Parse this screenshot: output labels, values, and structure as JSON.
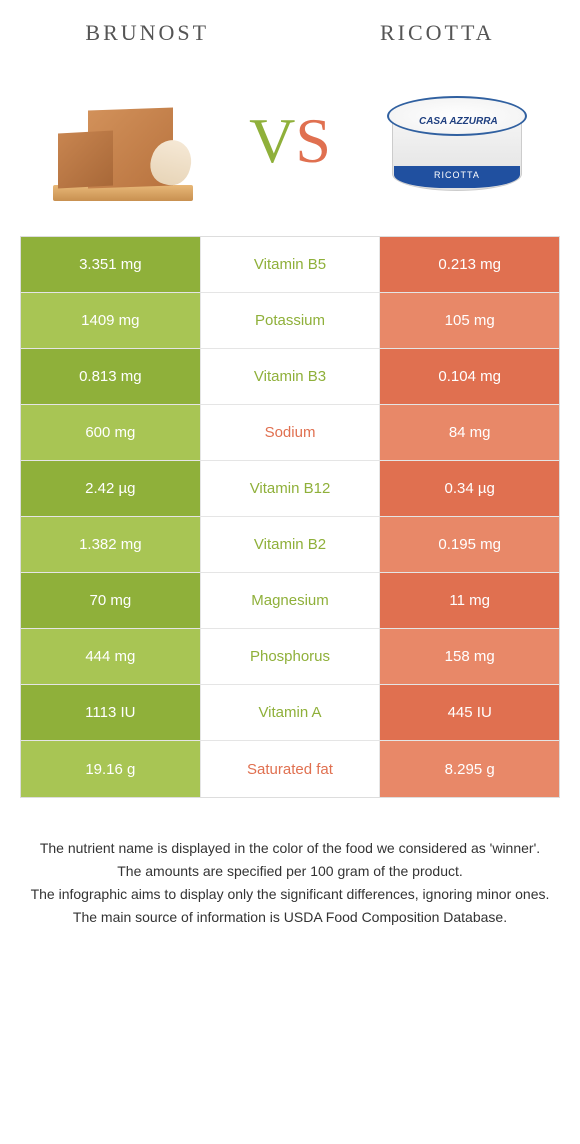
{
  "header": {
    "left": "Brunost",
    "right": "Ricotta"
  },
  "vs": {
    "v": "V",
    "s": "S",
    "v_color": "#8fb03a",
    "s_color": "#e07050"
  },
  "colors": {
    "brunost": "#8fb03a",
    "ricotta": "#e07050",
    "brunost_light": "#a8c554",
    "ricotta_light": "#e88868"
  },
  "ricotta_label": "RICOTTA",
  "ricotta_brand": "CASA AZZURRA",
  "rows": [
    {
      "left": "3.351 mg",
      "mid": "Vitamin B5",
      "right": "0.213 mg",
      "winner": "brunost"
    },
    {
      "left": "1409 mg",
      "mid": "Potassium",
      "right": "105 mg",
      "winner": "brunost"
    },
    {
      "left": "0.813 mg",
      "mid": "Vitamin B3",
      "right": "0.104 mg",
      "winner": "brunost"
    },
    {
      "left": "600 mg",
      "mid": "Sodium",
      "right": "84 mg",
      "winner": "ricotta"
    },
    {
      "left": "2.42 µg",
      "mid": "Vitamin B12",
      "right": "0.34 µg",
      "winner": "brunost"
    },
    {
      "left": "1.382 mg",
      "mid": "Vitamin B2",
      "right": "0.195 mg",
      "winner": "brunost"
    },
    {
      "left": "70 mg",
      "mid": "Magnesium",
      "right": "11 mg",
      "winner": "brunost"
    },
    {
      "left": "444 mg",
      "mid": "Phosphorus",
      "right": "158 mg",
      "winner": "brunost"
    },
    {
      "left": "1113 IU",
      "mid": "Vitamin A",
      "right": "445 IU",
      "winner": "brunost"
    },
    {
      "left": "19.16 g",
      "mid": "Saturated fat",
      "right": "8.295 g",
      "winner": "ricotta"
    }
  ],
  "footer": [
    "The nutrient name is displayed in the color of the food we considered as 'winner'.",
    "The amounts are specified per 100 gram of the product.",
    "The infographic aims to display only the significant differences, ignoring minor ones.",
    "The main source of information is USDA Food Composition Database."
  ]
}
